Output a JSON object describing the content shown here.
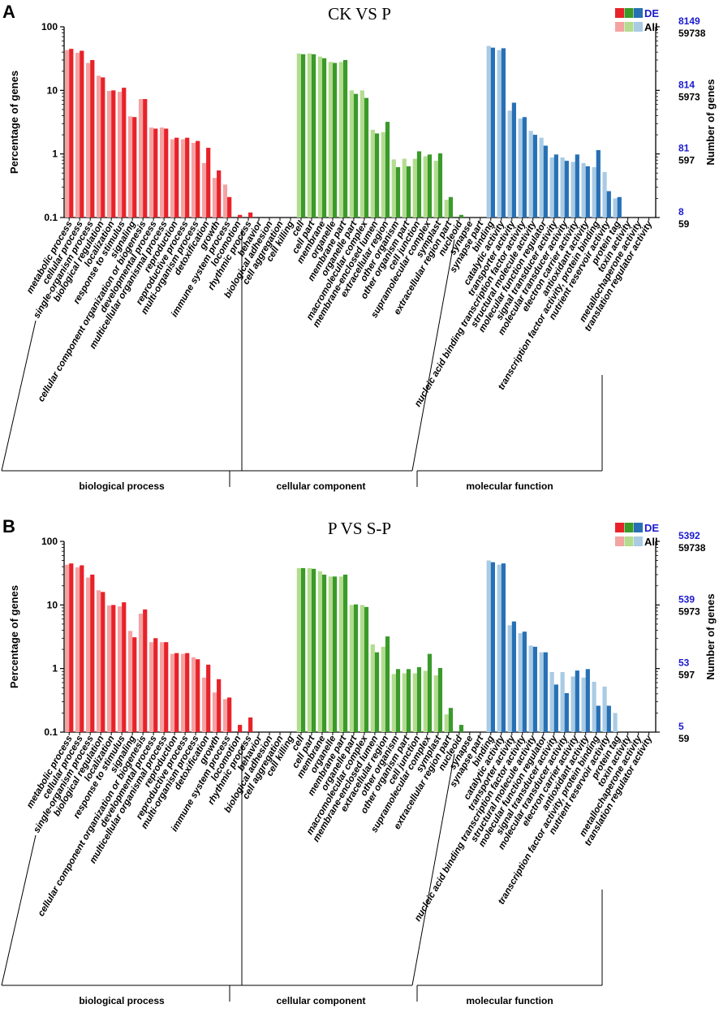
{
  "figure": {
    "group_labels": [
      "biological process",
      "cellular component",
      "molecular function"
    ],
    "group_colors": {
      "biological process": {
        "de": "#e8222a",
        "all": "#f4a3a3"
      },
      "cellular component": {
        "de": "#3a9a2a",
        "all": "#b3dc8f"
      },
      "molecular function": {
        "de": "#2770b5",
        "all": "#a9cbe4"
      }
    },
    "right_label_color": "#1a1ad0"
  },
  "chart_data": [
    {
      "panel_label": "A",
      "type": "bar",
      "title": "CK VS P",
      "ylabel": "Percentage of genes",
      "ylabel_right": "Number of genes",
      "yscale": "log",
      "ylim": [
        0.1,
        100
      ],
      "yticks": [
        100,
        10,
        1,
        0.1
      ],
      "ytick_labels": [
        "100",
        "10",
        "1",
        "0.1"
      ],
      "right_ticks_de": [
        "8149",
        "814",
        "81",
        "8"
      ],
      "right_ticks_all": [
        "59738",
        "5973",
        "597",
        "59"
      ],
      "legend": {
        "de_label": "DE",
        "all_label": "All"
      },
      "categories": [
        "metabolic process",
        "cellular process",
        "single-organism process",
        "biological regulation",
        "localization",
        "response to stimulus",
        "signaling",
        "cellular component organization or biogenesis",
        "developmental process",
        "multicellular organismal process",
        "reproduction",
        "reproductive process",
        "multi-organism process",
        "detoxification",
        "growth",
        "immune system process",
        "locomotion",
        "rhythmic process",
        "behavior",
        "biological adhesion",
        "cell aggregation",
        "cell killing",
        "cell",
        "cell part",
        "membrane",
        "organelle",
        "membrane part",
        "organelle part",
        "macromolecular complex",
        "membrane-enclosed lumen",
        "extracellular region",
        "other organism",
        "other organism part",
        "cell junction",
        "supramolecular complex",
        "symplast",
        "extracellular region part",
        "nucleoid",
        "synapse",
        "synapse part",
        "binding",
        "catalytic activity",
        "transporter activity",
        "nucleic acid binding transcription factor activity",
        "structural molecule activity",
        "molecular function regulator",
        "signal transducer activity",
        "molecular transducer activity",
        "electron carrier activity",
        "antioxidant activity",
        "transcription factor activity, protein binding",
        "nutrient reservoir activity",
        "protein tag",
        "toxin activity",
        "metallochaperone activity",
        "translation regulator activity"
      ],
      "group_sizes": [
        22,
        18,
        16
      ],
      "series": [
        {
          "name": "All",
          "values": [
            43,
            39,
            27,
            17,
            9.8,
            9.5,
            3.9,
            7.3,
            2.6,
            2.6,
            1.7,
            1.7,
            1.5,
            0.72,
            0.42,
            0.33,
            0.06,
            0.06,
            0.05,
            0.05,
            0.05,
            0.05,
            38,
            38,
            34,
            28,
            28,
            10,
            10,
            2.4,
            2.2,
            0.82,
            0.84,
            0.84,
            0.92,
            0.78,
            0.19,
            0.06,
            0.05,
            0.05,
            50,
            43,
            4.8,
            3.6,
            2.3,
            1.8,
            0.88,
            0.88,
            0.75,
            0.72,
            0.62,
            0.52,
            0.2,
            0.05,
            0.05,
            0.05
          ]
        },
        {
          "name": "DE",
          "values": [
            45,
            42,
            30,
            16,
            10,
            11,
            3.8,
            7.3,
            2.5,
            2.5,
            1.8,
            1.8,
            1.6,
            1.25,
            0.55,
            0.21,
            0.11,
            0.12,
            0.05,
            0.05,
            0.05,
            0.05,
            37,
            37,
            32,
            27,
            30,
            8.8,
            7.6,
            2.1,
            3.2,
            0.62,
            0.64,
            1.1,
            0.98,
            1.02,
            0.21,
            0.11,
            0.05,
            0.05,
            47,
            46,
            6.4,
            3.8,
            2.0,
            1.35,
            0.98,
            0.78,
            0.98,
            0.64,
            1.15,
            0.26,
            0.21,
            0.05,
            0.05,
            0.05
          ]
        }
      ]
    },
    {
      "panel_label": "B",
      "type": "bar",
      "title": "P VS S-P",
      "ylabel": "Percentage of genes",
      "ylabel_right": "Number of genes",
      "yscale": "log",
      "ylim": [
        0.1,
        100
      ],
      "yticks": [
        100,
        10,
        1,
        0.1
      ],
      "ytick_labels": [
        "100",
        "10",
        "1",
        "0.1"
      ],
      "right_ticks_de": [
        "5392",
        "539",
        "53",
        "5"
      ],
      "right_ticks_all": [
        "59738",
        "5973",
        "597",
        "59"
      ],
      "legend": {
        "de_label": "DE",
        "all_label": "All"
      },
      "categories": [
        "metabolic process",
        "cellular process",
        "single-organism process",
        "biological regulation",
        "localization",
        "response to stimulus",
        "signaling",
        "cellular component organization or biogenesis",
        "developmental process",
        "multicellular organismal process",
        "reproduction",
        "reproductive process",
        "multi-organism process",
        "detoxification",
        "growth",
        "immune system process",
        "locomotion",
        "rhythmic process",
        "behavior",
        "biological adhesion",
        "cell aggregation",
        "cell killing",
        "cell",
        "cell part",
        "membrane",
        "organelle",
        "membrane part",
        "organelle part",
        "macromolecular complex",
        "membrane-enclosed lumen",
        "extracellular region",
        "other organism",
        "other organism part",
        "cell junction",
        "supramolecular complex",
        "symplast",
        "extracellular region part",
        "nucleoid",
        "synapse",
        "synapse part",
        "binding",
        "catalytic activity",
        "transporter activity",
        "nucleic acid binding transcription factor activity",
        "structural molecule activity",
        "molecular function regulator",
        "signal transducer activity",
        "molecular transducer activity",
        "electron carrier activity",
        "antioxidant activity",
        "transcription factor activity, protein binding",
        "nutrient reservoir activity",
        "protein tag",
        "toxin activity",
        "metallochaperone activity",
        "translation regulator activity"
      ],
      "group_sizes": [
        22,
        18,
        16
      ],
      "series": [
        {
          "name": "All",
          "values": [
            43,
            39,
            27,
            17,
            9.8,
            9.5,
            3.9,
            7.3,
            2.6,
            2.6,
            1.7,
            1.7,
            1.5,
            0.72,
            0.42,
            0.33,
            0.06,
            0.06,
            0.05,
            0.05,
            0.05,
            0.05,
            38,
            38,
            34,
            28,
            28,
            10,
            10,
            2.4,
            2.2,
            0.82,
            0.84,
            0.84,
            0.92,
            0.78,
            0.19,
            0.06,
            0.05,
            0.05,
            50,
            43,
            4.8,
            3.6,
            2.3,
            1.8,
            0.88,
            0.88,
            0.75,
            0.72,
            0.62,
            0.52,
            0.2,
            0.05,
            0.05,
            0.05
          ]
        },
        {
          "name": "DE",
          "values": [
            45,
            42,
            30,
            16,
            10,
            11,
            3.1,
            8.5,
            3.0,
            2.6,
            1.75,
            1.75,
            1.4,
            1.15,
            0.68,
            0.35,
            0.13,
            0.17,
            0.05,
            0.05,
            0.05,
            0.05,
            38,
            37,
            30,
            28,
            30,
            10.2,
            9.3,
            1.8,
            3.2,
            0.98,
            0.98,
            1.05,
            1.7,
            1.02,
            0.24,
            0.13,
            0.05,
            0.05,
            47,
            45,
            5.5,
            3.8,
            2.2,
            1.8,
            0.56,
            0.41,
            0.93,
            0.98,
            0.26,
            0.26,
            0.05,
            0.05,
            0.05,
            0.05
          ]
        }
      ]
    }
  ]
}
